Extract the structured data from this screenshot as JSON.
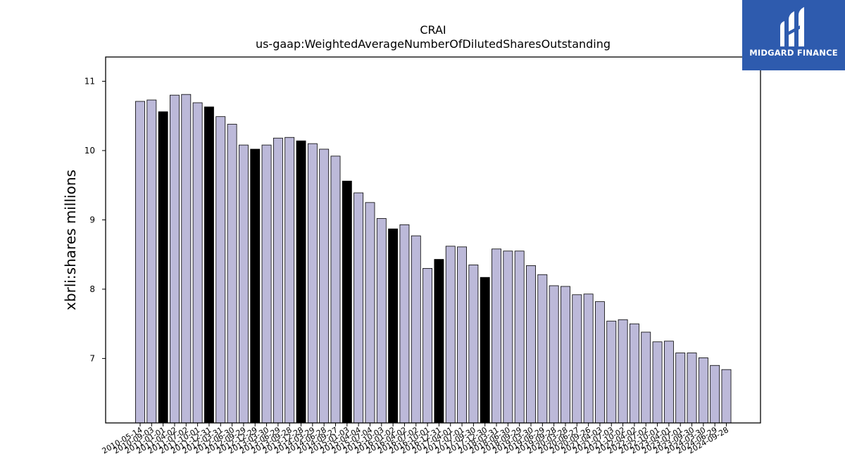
{
  "chart_data": {
    "type": "bar",
    "title": "CRAI",
    "subtitle": "us-gaap:WeightedAverageNumberOfDilutedSharesOutstanding",
    "xlabel": "",
    "ylabel": "xbrli:shares millions",
    "ylim": [
      6.07,
      11.35
    ],
    "yticks": [
      "7",
      "8",
      "9",
      "10",
      "11"
    ],
    "grid": false,
    "colors": {
      "normal": "#bcb9d9",
      "highlight": "#000000",
      "edge": "#000000"
    },
    "categories": [
      "2010-05-14",
      "2010-09-03",
      "2011-01-01",
      "2011-04-02",
      "2011-07-02",
      "2011-10-01",
      "2011-12-31",
      "2012-03-31",
      "2012-06-30",
      "2012-09-29",
      "2012-12-29",
      "2013-03-30",
      "2013-06-29",
      "2013-09-28",
      "2013-12-28",
      "2014-03-29",
      "2014-06-28",
      "2014-09-27",
      "2015-01-03",
      "2015-04-04",
      "2015-07-04",
      "2015-10-03",
      "2016-01-02",
      "2016-04-02",
      "2016-07-02",
      "2016-10-01",
      "2016-12-31",
      "2017-04-01",
      "2017-07-01",
      "2017-09-30",
      "2017-12-30",
      "2018-03-31",
      "2018-06-30",
      "2018-09-29",
      "2019-03-30",
      "2019-06-29",
      "2019-09-28",
      "2020-03-28",
      "2020-06-27",
      "2020-09-26",
      "2021-04-03",
      "2021-07-03",
      "2021-10-02",
      "2022-04-02",
      "2022-07-02",
      "2022-10-01",
      "2023-04-01",
      "2023-07-01",
      "2023-09-30",
      "2024-03-30",
      "2024-06-29",
      "2024-09-28"
    ],
    "values": [
      10.71,
      10.73,
      10.56,
      10.8,
      10.81,
      10.69,
      10.63,
      10.49,
      10.38,
      10.08,
      10.02,
      10.08,
      10.18,
      10.19,
      10.14,
      10.1,
      10.02,
      9.92,
      9.56,
      9.39,
      9.25,
      9.02,
      8.87,
      8.93,
      8.77,
      8.3,
      8.43,
      8.62,
      8.61,
      8.35,
      8.17,
      8.58,
      8.55,
      8.55,
      8.34,
      8.21,
      8.05,
      8.04,
      7.92,
      7.93,
      7.82,
      7.54,
      7.56,
      7.5,
      7.38,
      7.24,
      7.25,
      7.08,
      7.08,
      7.01,
      6.9,
      6.84
    ],
    "highlight": [
      false,
      false,
      true,
      false,
      false,
      false,
      true,
      false,
      false,
      false,
      true,
      false,
      false,
      false,
      true,
      false,
      false,
      false,
      true,
      false,
      false,
      false,
      true,
      false,
      false,
      false,
      true,
      false,
      false,
      false,
      true,
      false,
      false,
      false,
      false,
      false,
      false,
      false,
      false,
      false,
      false,
      false,
      false,
      false,
      false,
      false,
      false,
      false,
      false,
      false,
      false,
      false
    ]
  },
  "logo": {
    "text": "MIDGARD FINANCE",
    "icon": "midgard-logo-icon",
    "color": "#2e5bae"
  }
}
